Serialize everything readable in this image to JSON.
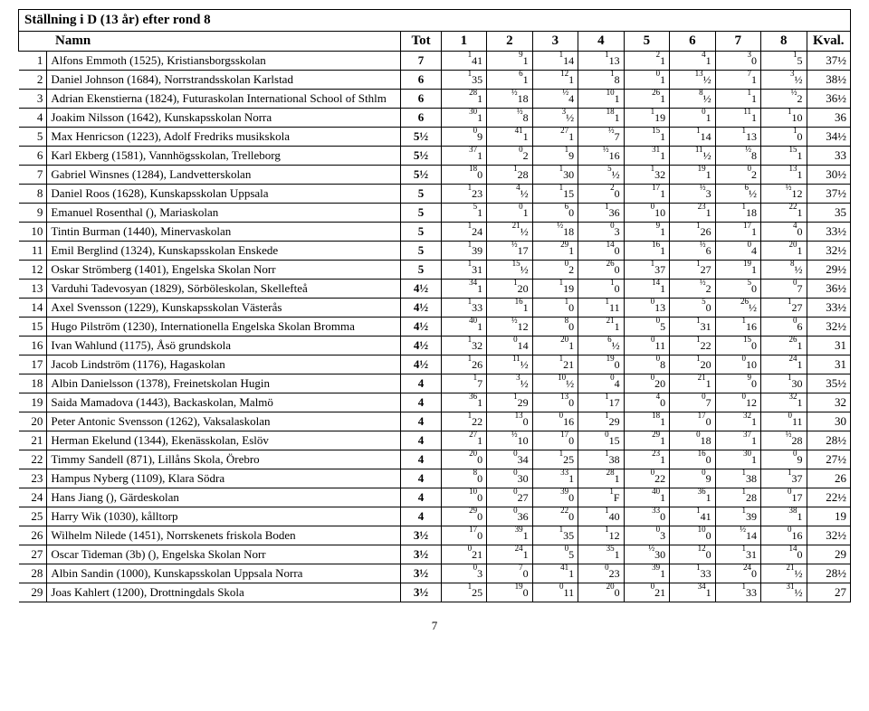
{
  "title": "Ställning i D (13 år) efter rond 8",
  "headers": {
    "name": "Namn",
    "tot": "Tot",
    "r1": "1",
    "r2": "2",
    "r3": "3",
    "r4": "4",
    "r5": "5",
    "r6": "6",
    "r7": "7",
    "r8": "8",
    "kval": "Kval."
  },
  "page_num": "7",
  "rows": [
    {
      "rank": "1",
      "name": "Alfons Emmoth (1525), Kristiansborgsskolan",
      "tot": "7",
      "r": [
        {
          "s": "1",
          "v": "41"
        },
        {
          "s": "9",
          "v": "1"
        },
        {
          "s": "1",
          "v": "14"
        },
        {
          "s": "1",
          "v": "13"
        },
        {
          "s": "2",
          "v": "1"
        },
        {
          "s": "4",
          "v": "1"
        },
        {
          "s": "3",
          "v": "0"
        },
        {
          "s": "1",
          "v": "5"
        }
      ],
      "kval": "37½"
    },
    {
      "rank": "2",
      "name": "Daniel Johnson (1684), Norrstrandsskolan Karlstad",
      "tot": "6",
      "r": [
        {
          "s": "1",
          "v": "35"
        },
        {
          "s": "6",
          "v": "1"
        },
        {
          "s": "12",
          "v": "1"
        },
        {
          "s": "1",
          "v": "8"
        },
        {
          "s": "0",
          "v": "1"
        },
        {
          "s": "13",
          "v": "½"
        },
        {
          "s": "7",
          "v": "1"
        },
        {
          "s": "3",
          "v": "½"
        }
      ],
      "kval": "38½"
    },
    {
      "rank": "3",
      "name": "Adrian Ekenstierna (1824), Futuraskolan International School of Sthlm",
      "tot": "6",
      "r": [
        {
          "s": "28",
          "v": "1"
        },
        {
          "s": "½",
          "v": "18"
        },
        {
          "s": "½",
          "v": "4"
        },
        {
          "s": "10",
          "v": "1"
        },
        {
          "s": "26",
          "v": "1"
        },
        {
          "s": "8",
          "v": "½"
        },
        {
          "s": "1",
          "v": "1"
        },
        {
          "s": "½",
          "v": "2"
        }
      ],
      "kval": "36½"
    },
    {
      "rank": "4",
      "name": "Joakim Nilsson (1642), Kunskapsskolan Norra",
      "tot": "6",
      "r": [
        {
          "s": "30",
          "v": "1"
        },
        {
          "s": "½",
          "v": "8"
        },
        {
          "s": "3",
          "v": "½"
        },
        {
          "s": "18",
          "v": "1"
        },
        {
          "s": "1",
          "v": "19"
        },
        {
          "s": "0",
          "v": "1"
        },
        {
          "s": "11",
          "v": "1"
        },
        {
          "s": "1",
          "v": "10"
        }
      ],
      "kval": "36"
    },
    {
      "rank": "5",
      "name": "Max Henricson (1223), Adolf Fredriks musikskola",
      "tot": "5½",
      "r": [
        {
          "s": "0",
          "v": "9"
        },
        {
          "s": "41",
          "v": "1"
        },
        {
          "s": "27",
          "v": "1"
        },
        {
          "s": "½",
          "v": "7"
        },
        {
          "s": "15",
          "v": "1"
        },
        {
          "s": "1",
          "v": "14"
        },
        {
          "s": "1",
          "v": "13"
        },
        {
          "s": "1",
          "v": "0"
        }
      ],
      "kval": "34½"
    },
    {
      "rank": "6",
      "name": "Karl Ekberg (1581), Vannhögsskolan, Trelleborg",
      "tot": "5½",
      "r": [
        {
          "s": "37",
          "v": "1"
        },
        {
          "s": "0",
          "v": "2"
        },
        {
          "s": "1",
          "v": "9"
        },
        {
          "s": "½",
          "v": "16"
        },
        {
          "s": "31",
          "v": "1"
        },
        {
          "s": "11",
          "v": "½"
        },
        {
          "s": "½",
          "v": "8"
        },
        {
          "s": "15",
          "v": "1"
        }
      ],
      "kval": "33"
    },
    {
      "rank": "7",
      "name": "Gabriel Winsnes (1284), Landvetterskolan",
      "tot": "5½",
      "r": [
        {
          "s": "18",
          "v": "0"
        },
        {
          "s": "1",
          "v": "28"
        },
        {
          "s": "1",
          "v": "30"
        },
        {
          "s": "5",
          "v": "½"
        },
        {
          "s": "1",
          "v": "32"
        },
        {
          "s": "19",
          "v": "1"
        },
        {
          "s": "0",
          "v": "2"
        },
        {
          "s": "13",
          "v": "1"
        }
      ],
      "kval": "30½"
    },
    {
      "rank": "8",
      "name": "Daniel Roos (1628), Kunskapsskolan Uppsala",
      "tot": "5",
      "r": [
        {
          "s": "1",
          "v": "23"
        },
        {
          "s": "4",
          "v": "½"
        },
        {
          "s": "1",
          "v": "15"
        },
        {
          "s": "2",
          "v": "0"
        },
        {
          "s": "17",
          "v": "1"
        },
        {
          "s": "½",
          "v": "3"
        },
        {
          "s": "6",
          "v": "½"
        },
        {
          "s": "½",
          "v": "12"
        }
      ],
      "kval": "37½"
    },
    {
      "rank": "9",
      "name": "Emanuel Rosenthal (), Mariaskolan",
      "tot": "5",
      "r": [
        {
          "s": "5",
          "v": "1"
        },
        {
          "s": "0",
          "v": "1"
        },
        {
          "s": "6",
          "v": "0"
        },
        {
          "s": "1",
          "v": "36"
        },
        {
          "s": "0",
          "v": "10"
        },
        {
          "s": "23",
          "v": "1"
        },
        {
          "s": "1",
          "v": "18"
        },
        {
          "s": "22",
          "v": "1"
        }
      ],
      "kval": "35"
    },
    {
      "rank": "10",
      "name": "Tintin Burman (1440), Minervaskolan",
      "tot": "5",
      "r": [
        {
          "s": "1",
          "v": "24"
        },
        {
          "s": "21",
          "v": "½"
        },
        {
          "s": "½",
          "v": "18"
        },
        {
          "s": "0",
          "v": "3"
        },
        {
          "s": "9",
          "v": "1"
        },
        {
          "s": "1",
          "v": "26"
        },
        {
          "s": "17",
          "v": "1"
        },
        {
          "s": "4",
          "v": "0"
        }
      ],
      "kval": "33½"
    },
    {
      "rank": "11",
      "name": "Emil Berglind (1324), Kunskapsskolan Enskede",
      "tot": "5",
      "r": [
        {
          "s": "1",
          "v": "39"
        },
        {
          "s": "½",
          "v": "17"
        },
        {
          "s": "29",
          "v": "1"
        },
        {
          "s": "14",
          "v": "0"
        },
        {
          "s": "16",
          "v": "1"
        },
        {
          "s": "½",
          "v": "6"
        },
        {
          "s": "0",
          "v": "4"
        },
        {
          "s": "20",
          "v": "1"
        }
      ],
      "kval": "32½"
    },
    {
      "rank": "12",
      "name": "Oskar Strömberg (1401), Engelska Skolan Norr",
      "tot": "5",
      "r": [
        {
          "s": "1",
          "v": "31"
        },
        {
          "s": "15",
          "v": "½"
        },
        {
          "s": "0",
          "v": "2"
        },
        {
          "s": "26",
          "v": "0"
        },
        {
          "s": "1",
          "v": "37"
        },
        {
          "s": "1",
          "v": "27"
        },
        {
          "s": "19",
          "v": "1"
        },
        {
          "s": "8",
          "v": "½"
        }
      ],
      "kval": "29½"
    },
    {
      "rank": "13",
      "name": "Varduhi Tadevosyan (1829), Sörböleskolan, Skellefteå",
      "tot": "4½",
      "r": [
        {
          "s": "34",
          "v": "1"
        },
        {
          "s": "1",
          "v": "20"
        },
        {
          "s": "1",
          "v": "19"
        },
        {
          "s": "1",
          "v": "0"
        },
        {
          "s": "14",
          "v": "1"
        },
        {
          "s": "½",
          "v": "2"
        },
        {
          "s": "5",
          "v": "0"
        },
        {
          "s": "0",
          "v": "7"
        }
      ],
      "kval": "36½"
    },
    {
      "rank": "14",
      "name": "Axel Svensson (1229), Kunskapsskolan Västerås",
      "tot": "4½",
      "r": [
        {
          "s": "1",
          "v": "33"
        },
        {
          "s": "16",
          "v": "1"
        },
        {
          "s": "1",
          "v": "0"
        },
        {
          "s": "1",
          "v": "11"
        },
        {
          "s": "0",
          "v": "13"
        },
        {
          "s": "5",
          "v": "0"
        },
        {
          "s": "26",
          "v": "½"
        },
        {
          "s": "1",
          "v": "27"
        }
      ],
      "kval": "33½"
    },
    {
      "rank": "15",
      "name": "Hugo Pilström (1230), Internationella Engelska Skolan Bromma",
      "tot": "4½",
      "r": [
        {
          "s": "40",
          "v": "1"
        },
        {
          "s": "½",
          "v": "12"
        },
        {
          "s": "8",
          "v": "0"
        },
        {
          "s": "21",
          "v": "1"
        },
        {
          "s": "0",
          "v": "5"
        },
        {
          "s": "1",
          "v": "31"
        },
        {
          "s": "1",
          "v": "16"
        },
        {
          "s": "0",
          "v": "6"
        }
      ],
      "kval": "32½"
    },
    {
      "rank": "16",
      "name": "Ivan Wahlund (1175), Åsö grundskola",
      "tot": "4½",
      "r": [
        {
          "s": "1",
          "v": "32"
        },
        {
          "s": "0",
          "v": "14"
        },
        {
          "s": "20",
          "v": "1"
        },
        {
          "s": "6",
          "v": "½"
        },
        {
          "s": "0",
          "v": "11"
        },
        {
          "s": "1",
          "v": "22"
        },
        {
          "s": "15",
          "v": "0"
        },
        {
          "s": "26",
          "v": "1"
        }
      ],
      "kval": "31"
    },
    {
      "rank": "17",
      "name": "Jacob Lindström (1176), Hagaskolan",
      "tot": "4½",
      "r": [
        {
          "s": "1",
          "v": "26"
        },
        {
          "s": "11",
          "v": "½"
        },
        {
          "s": "1",
          "v": "21"
        },
        {
          "s": "19",
          "v": "0"
        },
        {
          "s": "0",
          "v": "8"
        },
        {
          "s": "1",
          "v": "20"
        },
        {
          "s": "0",
          "v": "10"
        },
        {
          "s": "24",
          "v": "1"
        }
      ],
      "kval": "31"
    },
    {
      "rank": "18",
      "name": "Albin Danielsson (1378), Freinetskolan Hugin",
      "tot": "4",
      "r": [
        {
          "s": "1",
          "v": "7"
        },
        {
          "s": "3",
          "v": "½"
        },
        {
          "s": "10",
          "v": "½"
        },
        {
          "s": "0",
          "v": "4"
        },
        {
          "s": "0",
          "v": "20"
        },
        {
          "s": "21",
          "v": "1"
        },
        {
          "s": "9",
          "v": "0"
        },
        {
          "s": "1",
          "v": "30"
        }
      ],
      "kval": "35½"
    },
    {
      "rank": "19",
      "name": "Saida Mamadova (1443), Backaskolan, Malmö",
      "tot": "4",
      "r": [
        {
          "s": "36",
          "v": "1"
        },
        {
          "s": "1",
          "v": "29"
        },
        {
          "s": "13",
          "v": "0"
        },
        {
          "s": "1",
          "v": "17"
        },
        {
          "s": "4",
          "v": "0"
        },
        {
          "s": "0",
          "v": "7"
        },
        {
          "s": "0",
          "v": "12"
        },
        {
          "s": "32",
          "v": "1"
        }
      ],
      "kval": "32"
    },
    {
      "rank": "20",
      "name": "Peter Antonic Svensson (1262), Vaksalaskolan",
      "tot": "4",
      "r": [
        {
          "s": "1",
          "v": "22"
        },
        {
          "s": "13",
          "v": "0"
        },
        {
          "s": "0",
          "v": "16"
        },
        {
          "s": "1",
          "v": "29"
        },
        {
          "s": "18",
          "v": "1"
        },
        {
          "s": "17",
          "v": "0"
        },
        {
          "s": "32",
          "v": "1"
        },
        {
          "s": "0",
          "v": "11"
        }
      ],
      "kval": "30"
    },
    {
      "rank": "21",
      "name": "Herman Ekelund (1344), Ekenässkolan, Eslöv",
      "tot": "4",
      "r": [
        {
          "s": "27",
          "v": "1"
        },
        {
          "s": "½",
          "v": "10"
        },
        {
          "s": "17",
          "v": "0"
        },
        {
          "s": "0",
          "v": "15"
        },
        {
          "s": "29",
          "v": "1"
        },
        {
          "s": "0",
          "v": "18"
        },
        {
          "s": "37",
          "v": "1"
        },
        {
          "s": "½",
          "v": "28"
        }
      ],
      "kval": "28½"
    },
    {
      "rank": "22",
      "name": "Timmy Sandell (871), Lillåns Skola, Örebro",
      "tot": "4",
      "r": [
        {
          "s": "20",
          "v": "0"
        },
        {
          "s": "0",
          "v": "34"
        },
        {
          "s": "1",
          "v": "25"
        },
        {
          "s": "1",
          "v": "38"
        },
        {
          "s": "23",
          "v": "1"
        },
        {
          "s": "16",
          "v": "0"
        },
        {
          "s": "30",
          "v": "1"
        },
        {
          "s": "0",
          "v": "9"
        }
      ],
      "kval": "27½"
    },
    {
      "rank": "23",
      "name": "Hampus Nyberg (1109), Klara Södra",
      "tot": "4",
      "r": [
        {
          "s": "8",
          "v": "0"
        },
        {
          "s": "0",
          "v": "30"
        },
        {
          "s": "33",
          "v": "1"
        },
        {
          "s": "28",
          "v": "1"
        },
        {
          "s": "0",
          "v": "22"
        },
        {
          "s": "0",
          "v": "9"
        },
        {
          "s": "1",
          "v": "38"
        },
        {
          "s": "1",
          "v": "37"
        }
      ],
      "kval": "26"
    },
    {
      "rank": "24",
      "name": "Hans Jiang (), Gärdeskolan",
      "tot": "4",
      "r": [
        {
          "s": "10",
          "v": "0"
        },
        {
          "s": "0",
          "v": "27"
        },
        {
          "s": "39",
          "v": "0"
        },
        {
          "s": "1",
          "v": "F"
        },
        {
          "s": "40",
          "v": "1"
        },
        {
          "s": "36",
          "v": "1"
        },
        {
          "s": "1",
          "v": "28"
        },
        {
          "s": "0",
          "v": "17"
        }
      ],
      "kval": "22½"
    },
    {
      "rank": "25",
      "name": "Harry Wik (1030), kålltorp",
      "tot": "4",
      "r": [
        {
          "s": "29",
          "v": "0"
        },
        {
          "s": "0",
          "v": "36"
        },
        {
          "s": "22",
          "v": "0"
        },
        {
          "s": "1",
          "v": "40"
        },
        {
          "s": "33",
          "v": "0"
        },
        {
          "s": "1",
          "v": "41"
        },
        {
          "s": "1",
          "v": "39"
        },
        {
          "s": "38",
          "v": "1"
        }
      ],
      "kval": "19"
    },
    {
      "rank": "26",
      "name": "Wilhelm Nilede (1451), Norrskenets friskola Boden",
      "tot": "3½",
      "r": [
        {
          "s": "17",
          "v": "0"
        },
        {
          "s": "39",
          "v": "1"
        },
        {
          "s": "1",
          "v": "35"
        },
        {
          "s": "1",
          "v": "12"
        },
        {
          "s": "0",
          "v": "3"
        },
        {
          "s": "10",
          "v": "0"
        },
        {
          "s": "½",
          "v": "14"
        },
        {
          "s": "0",
          "v": "16"
        }
      ],
      "kval": "32½"
    },
    {
      "rank": "27",
      "name": "Oscar Tideman (3b) (), Engelska Skolan Norr",
      "tot": "3½",
      "r": [
        {
          "s": "0",
          "v": "21"
        },
        {
          "s": "24",
          "v": "1"
        },
        {
          "s": "0",
          "v": "5"
        },
        {
          "s": "35",
          "v": "1"
        },
        {
          "s": "½",
          "v": "30"
        },
        {
          "s": "12",
          "v": "0"
        },
        {
          "s": "1",
          "v": "31"
        },
        {
          "s": "14",
          "v": "0"
        }
      ],
      "kval": "29"
    },
    {
      "rank": "28",
      "name": "Albin Sandin (1000), Kunskapsskolan Uppsala Norra",
      "tot": "3½",
      "r": [
        {
          "s": "0",
          "v": "3"
        },
        {
          "s": "7",
          "v": "0"
        },
        {
          "s": "41",
          "v": "1"
        },
        {
          "s": "0",
          "v": "23"
        },
        {
          "s": "39",
          "v": "1"
        },
        {
          "s": "1",
          "v": "33"
        },
        {
          "s": "24",
          "v": "0"
        },
        {
          "s": "21",
          "v": "½"
        }
      ],
      "kval": "28½"
    },
    {
      "rank": "29",
      "name": "Joas Kahlert (1200), Drottningdals Skola",
      "tot": "3½",
      "r": [
        {
          "s": "1",
          "v": "25"
        },
        {
          "s": "19",
          "v": "0"
        },
        {
          "s": "0",
          "v": "11"
        },
        {
          "s": "20",
          "v": "0"
        },
        {
          "s": "0",
          "v": "21"
        },
        {
          "s": "34",
          "v": "1"
        },
        {
          "s": "1",
          "v": "33"
        },
        {
          "s": "31",
          "v": "½"
        }
      ],
      "kval": "27"
    }
  ]
}
